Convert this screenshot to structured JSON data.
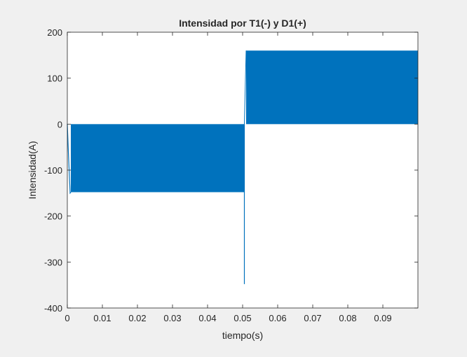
{
  "chart_data": {
    "type": "line",
    "title": "Intensidad por T1(-) y D1(+)",
    "xlabel": "tiempo(s)",
    "ylabel": "Intensidad(A)",
    "xlim": [
      0,
      0.1
    ],
    "ylim": [
      -400,
      200
    ],
    "grid": false,
    "x_ticks": [
      0,
      0.01,
      0.02,
      0.03,
      0.04,
      0.05,
      0.06,
      0.07,
      0.08,
      0.09
    ],
    "x_tick_labels": [
      "0",
      "0.01",
      "0.02",
      "0.03",
      "0.04",
      "0.05",
      "0.06",
      "0.07",
      "0.08",
      "0.09"
    ],
    "y_ticks": [
      200,
      100,
      0,
      -100,
      -200,
      -300,
      -400
    ],
    "y_tick_labels": [
      "200",
      "100",
      "0",
      "-100",
      "-200",
      "-300",
      "-400"
    ],
    "series": [
      {
        "name": "Intensidad",
        "color": "#0072bd",
        "segments": [
          {
            "description": "high-frequency switching between 0 and about -148 A",
            "x_start": 0.001,
            "x_end": 0.0505,
            "y_low": -148,
            "y_high": 0
          },
          {
            "description": "high-frequency switching between 0 and about 160 A",
            "x_start": 0.051,
            "x_end": 0.1,
            "y_low": 0,
            "y_high": 160
          }
        ],
        "initial_transient": {
          "x": [
            0,
            0.0003,
            0.0008,
            0.001
          ],
          "y": [
            0,
            -60,
            -150,
            -148
          ]
        },
        "spike": {
          "x": 0.0505,
          "y": -348
        }
      }
    ]
  }
}
